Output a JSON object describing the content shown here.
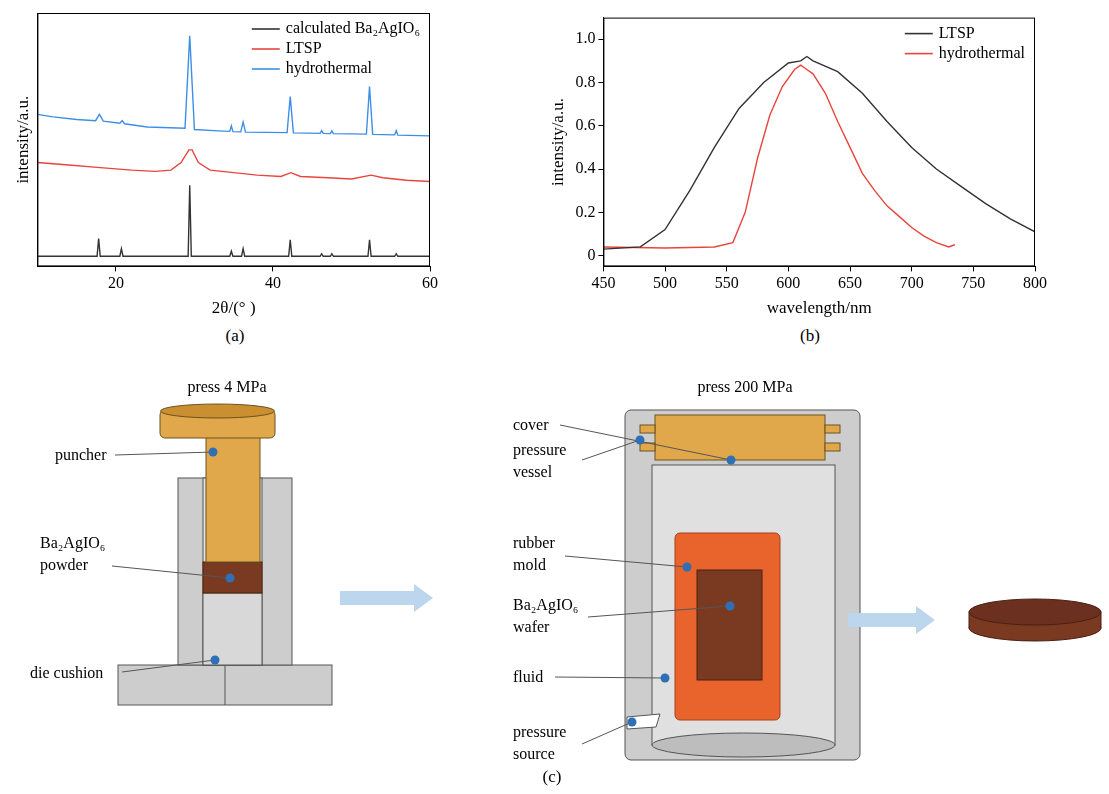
{
  "chart_data": [
    {
      "type": "line",
      "panel_label": "(a)",
      "x_label": "2θ/(° )",
      "y_label": "intensity/a.u.",
      "xlim": [
        10,
        60
      ],
      "xticks": [
        20,
        40,
        60
      ],
      "ylim": [
        0,
        100
      ],
      "tick_labels": "x",
      "grid": false,
      "legend": "upper right",
      "series": [
        {
          "name": "calculated Ba₂AgIO₆",
          "color": "#333333",
          "x": [
            10,
            17.6,
            17.8,
            18.0,
            20.5,
            20.7,
            20.9,
            29.2,
            29.4,
            29.6,
            34.5,
            34.7,
            34.9,
            36.0,
            36.2,
            36.4,
            42.0,
            42.2,
            42.4,
            46.0,
            46.2,
            46.4,
            47.3,
            47.5,
            47.7,
            52.1,
            52.3,
            52.5,
            55.5,
            55.7,
            55.9,
            60
          ],
          "values": [
            4,
            4,
            11,
            4,
            4,
            7,
            4,
            4,
            32,
            4,
            4,
            6,
            4,
            4,
            7,
            4,
            4,
            10.5,
            4,
            4,
            5,
            4,
            4,
            5,
            4,
            4,
            10.5,
            4,
            4,
            5,
            4,
            4
          ]
        },
        {
          "name": "LTSP",
          "color": "#e8453c",
          "x": [
            10,
            14,
            18,
            22,
            25,
            27,
            28.3,
            29.3,
            29.7,
            30.5,
            32,
            35,
            38,
            41,
            42.3,
            43.5,
            47,
            50,
            52.5,
            54,
            57,
            60
          ],
          "values": [
            41,
            40,
            39,
            38,
            37.5,
            38,
            41,
            46,
            46,
            41,
            38,
            37,
            36,
            35.5,
            37,
            35.5,
            35,
            34.5,
            36,
            35,
            34,
            33.5
          ]
        },
        {
          "name": "hydrothermal",
          "color": "#3d8ee6",
          "x": [
            10,
            12,
            15,
            17.4,
            17.9,
            18.4,
            20.5,
            20.8,
            21.1,
            24,
            28.8,
            29.4,
            30,
            33,
            34.5,
            34.7,
            34.9,
            35.9,
            36.2,
            36.5,
            41.8,
            42.2,
            42.6,
            46,
            46.2,
            46.4,
            47.3,
            47.5,
            47.7,
            51.9,
            52.3,
            52.7,
            55.5,
            55.7,
            55.9,
            60
          ],
          "values": [
            60,
            59,
            58,
            57.5,
            60,
            57.3,
            56.5,
            57.5,
            56.3,
            55,
            54.5,
            91,
            54,
            53.5,
            53.3,
            55.5,
            53.2,
            53.1,
            57,
            53,
            52.8,
            67,
            52.7,
            52.5,
            53.6,
            52.5,
            52.4,
            53.5,
            52.4,
            52.2,
            71,
            52.1,
            51.9,
            53.6,
            51.8,
            51.5
          ]
        }
      ]
    },
    {
      "type": "line",
      "panel_label": "(b)",
      "x_label": "wavelength/nm",
      "y_label": "intensity/a.u.",
      "xlim": [
        450,
        800
      ],
      "xticks": [
        450,
        500,
        550,
        600,
        650,
        700,
        750,
        800
      ],
      "ylim": [
        -0.05,
        1.1
      ],
      "yticks": [
        0,
        0.2,
        0.4,
        0.6,
        0.8,
        {
          "value": 1,
          "label": "1.0"
        }
      ],
      "grid": false,
      "legend": "upper right",
      "series": [
        {
          "name": "LTSP",
          "color": "#333333",
          "x": [
            450,
            480,
            500,
            520,
            540,
            560,
            580,
            600,
            610,
            615,
            620,
            640,
            660,
            680,
            700,
            720,
            740,
            760,
            780,
            800
          ],
          "values": [
            0.03,
            0.04,
            0.12,
            0.3,
            0.5,
            0.68,
            0.8,
            0.89,
            0.9,
            0.92,
            0.9,
            0.85,
            0.75,
            0.62,
            0.5,
            0.4,
            0.32,
            0.24,
            0.17,
            0.11
          ]
        },
        {
          "name": "hydrothermal",
          "color": "#e8453c",
          "x": [
            450,
            500,
            540,
            555,
            565,
            575,
            585,
            595,
            605,
            610,
            615,
            620,
            630,
            640,
            650,
            660,
            670,
            680,
            690,
            700,
            710,
            720,
            730,
            735
          ],
          "values": [
            0.04,
            0.035,
            0.04,
            0.06,
            0.2,
            0.45,
            0.65,
            0.78,
            0.86,
            0.88,
            0.86,
            0.84,
            0.75,
            0.62,
            0.5,
            0.38,
            0.3,
            0.23,
            0.18,
            0.13,
            0.09,
            0.06,
            0.04,
            0.05
          ]
        }
      ]
    }
  ],
  "diagram": {
    "panel_label": "(c)",
    "steps": [
      {
        "title": "press 4 MPa",
        "labels": [
          "puncher",
          "Ba₂AgIO₆ powder",
          "die cushion"
        ]
      },
      {
        "title": "press 200 MPa",
        "labels": [
          "cover",
          "pressure vessel",
          "rubber mold",
          "Ba₂AgIO₆ wafer",
          "fluid",
          "pressure source"
        ]
      }
    ]
  }
}
